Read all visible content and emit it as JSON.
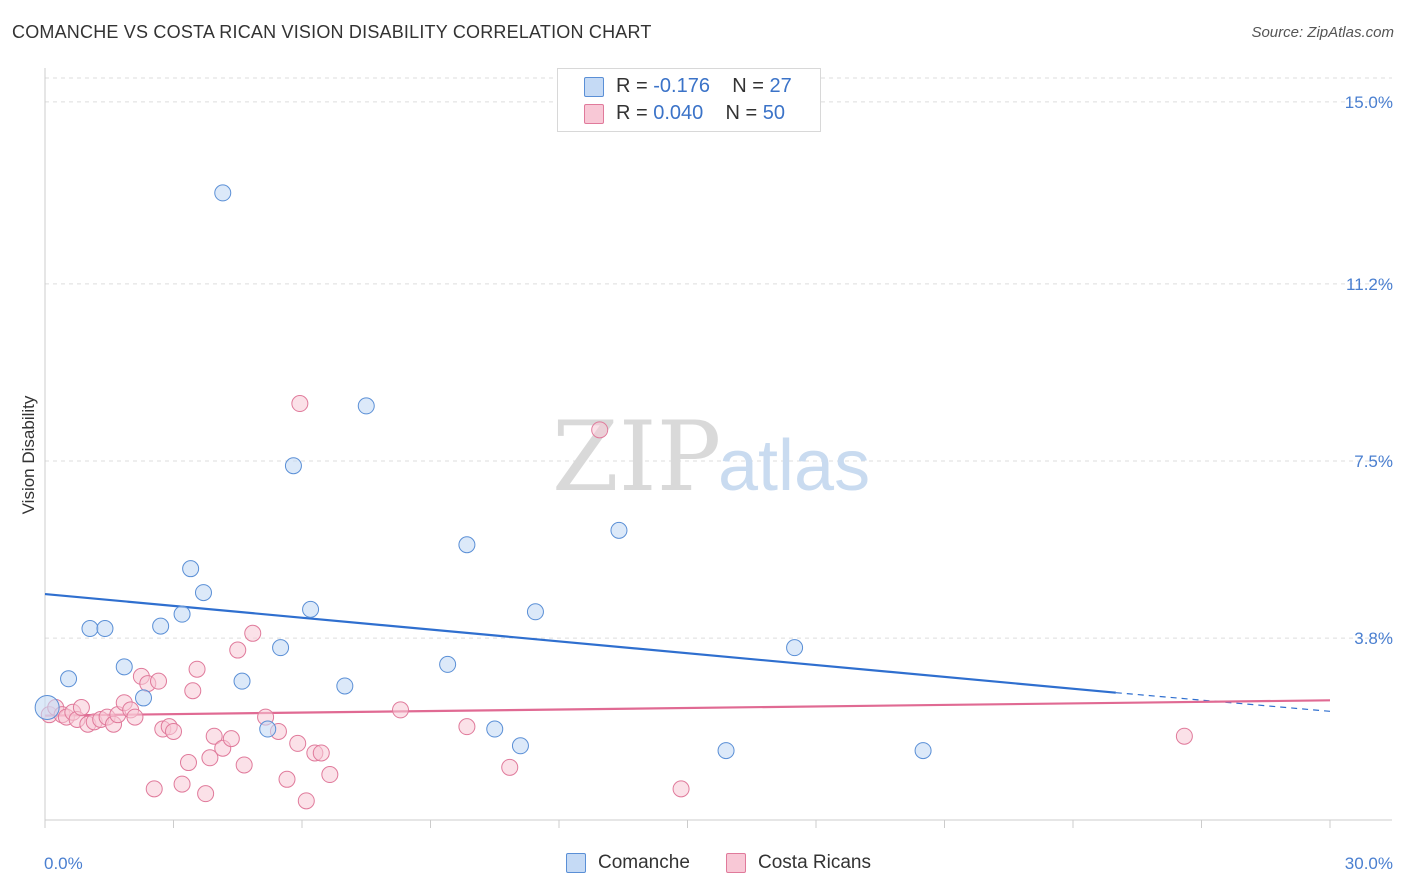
{
  "title": "COMANCHE VS COSTA RICAN VISION DISABILITY CORRELATION CHART",
  "source": "Source: ZipAtlas.com",
  "watermark": {
    "zip": "ZIP",
    "atlas": "atlas"
  },
  "legend": {
    "rows": [
      {
        "r_label": "R = ",
        "r_value": "-0.176",
        "n_label": "N = ",
        "n_value": "27"
      },
      {
        "r_label": "R = ",
        "r_value": "0.040",
        "n_label": "N = ",
        "n_value": "50"
      }
    ]
  },
  "colors": {
    "comanche_fill": "#c5daf5",
    "comanche_stroke": "#5a8fd6",
    "comanche_line": "#2f6fcf",
    "costa_fill": "#f8c8d6",
    "costa_stroke": "#e07a9b",
    "costa_line": "#e06a93"
  },
  "chart_data": {
    "type": "scatter",
    "title": "COMANCHE VS COSTA RICAN VISION DISABILITY CORRELATION CHART",
    "xlabel": "",
    "ylabel": "Vision Disability",
    "xlim": [
      0,
      30
    ],
    "ylim": [
      0,
      15.5
    ],
    "x_tick_labels": [
      "0.0%",
      "30.0%"
    ],
    "y_ticks": [
      3.8,
      7.5,
      11.2,
      15.0
    ],
    "y_tick_labels": [
      "3.8%",
      "7.5%",
      "11.2%",
      "15.0%"
    ],
    "grid": true,
    "legend_position": "top-center",
    "series": [
      {
        "name": "Comanche",
        "points": [
          [
            0.05,
            2.35
          ],
          [
            0.55,
            2.95
          ],
          [
            1.05,
            4.0
          ],
          [
            1.4,
            4.0
          ],
          [
            1.85,
            3.2
          ],
          [
            2.3,
            2.55
          ],
          [
            2.7,
            4.05
          ],
          [
            3.2,
            4.3
          ],
          [
            3.4,
            5.25
          ],
          [
            3.7,
            4.75
          ],
          [
            4.15,
            13.1
          ],
          [
            4.6,
            2.9
          ],
          [
            5.2,
            1.9
          ],
          [
            5.5,
            3.6
          ],
          [
            5.8,
            7.4
          ],
          [
            6.2,
            4.4
          ],
          [
            7.0,
            2.8
          ],
          [
            7.5,
            8.65
          ],
          [
            9.4,
            3.25
          ],
          [
            9.85,
            5.75
          ],
          [
            10.5,
            1.9
          ],
          [
            11.1,
            1.55
          ],
          [
            11.45,
            4.35
          ],
          [
            13.4,
            6.05
          ],
          [
            15.9,
            1.45
          ],
          [
            17.5,
            3.6
          ],
          [
            20.5,
            1.45
          ]
        ],
        "trend": {
          "x": [
            0,
            25
          ],
          "y": [
            4.72,
            2.66
          ],
          "dashed_to": [
            30,
            2.27
          ]
        }
      },
      {
        "name": "Costa Ricans",
        "points": [
          [
            0.1,
            2.2
          ],
          [
            0.25,
            2.35
          ],
          [
            0.4,
            2.2
          ],
          [
            0.5,
            2.15
          ],
          [
            0.65,
            2.25
          ],
          [
            0.75,
            2.1
          ],
          [
            0.85,
            2.35
          ],
          [
            1.0,
            2.0
          ],
          [
            1.15,
            2.05
          ],
          [
            1.3,
            2.1
          ],
          [
            1.45,
            2.15
          ],
          [
            1.6,
            2.0
          ],
          [
            1.7,
            2.2
          ],
          [
            1.85,
            2.45
          ],
          [
            2.0,
            2.3
          ],
          [
            2.1,
            2.15
          ],
          [
            2.25,
            3.0
          ],
          [
            2.4,
            2.85
          ],
          [
            2.55,
            0.65
          ],
          [
            2.65,
            2.9
          ],
          [
            2.75,
            1.9
          ],
          [
            2.9,
            1.95
          ],
          [
            3.0,
            1.85
          ],
          [
            3.2,
            0.75
          ],
          [
            3.35,
            1.2
          ],
          [
            3.45,
            2.7
          ],
          [
            3.55,
            3.15
          ],
          [
            3.75,
            0.55
          ],
          [
            3.85,
            1.3
          ],
          [
            3.95,
            1.75
          ],
          [
            4.15,
            1.5
          ],
          [
            4.35,
            1.7
          ],
          [
            4.5,
            3.55
          ],
          [
            4.65,
            1.15
          ],
          [
            4.85,
            3.9
          ],
          [
            5.15,
            2.15
          ],
          [
            5.45,
            1.85
          ],
          [
            5.65,
            0.85
          ],
          [
            5.9,
            1.6
          ],
          [
            5.95,
            8.7
          ],
          [
            6.1,
            0.4
          ],
          [
            6.3,
            1.4
          ],
          [
            6.45,
            1.4
          ],
          [
            6.65,
            0.95
          ],
          [
            8.3,
            2.3
          ],
          [
            9.85,
            1.95
          ],
          [
            10.85,
            1.1
          ],
          [
            12.95,
            8.15
          ],
          [
            14.85,
            0.65
          ],
          [
            26.6,
            1.75
          ]
        ],
        "trend": {
          "x": [
            0,
            30
          ],
          "y": [
            2.18,
            2.5
          ]
        }
      }
    ]
  }
}
